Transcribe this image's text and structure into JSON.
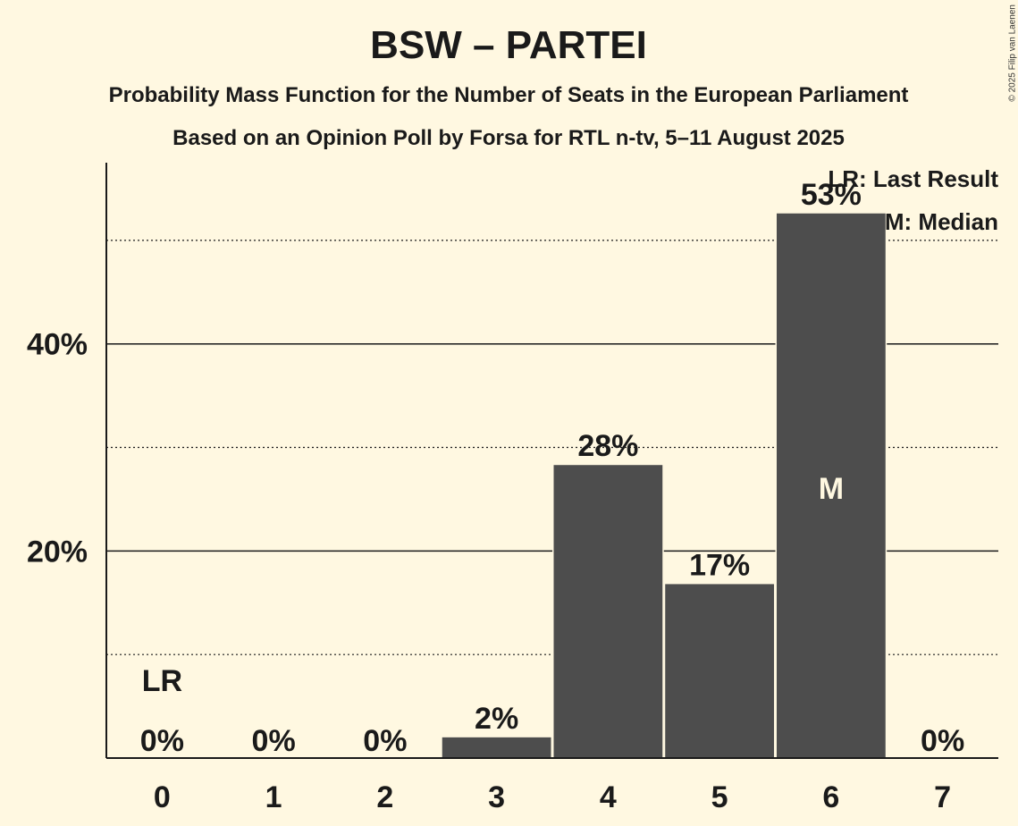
{
  "chart_data": {
    "type": "bar",
    "title": "BSW – PARTEI",
    "subtitle1": "Probability Mass Function for the Number of Seats in the European Parliament",
    "subtitle2": "Based on an Opinion Poll by Forsa for RTL n-tv, 5–11 August 2025",
    "copyright": "© 2025 Filip van Laenen",
    "categories": [
      "0",
      "1",
      "2",
      "3",
      "4",
      "5",
      "6",
      "7"
    ],
    "values": [
      0,
      0,
      0,
      2,
      28.3,
      16.8,
      52.6,
      0
    ],
    "value_labels": [
      "0%",
      "0%",
      "0%",
      "2%",
      "28%",
      "17%",
      "53%",
      "0%"
    ],
    "ylim": [
      0,
      57.5
    ],
    "y_ticks": [
      {
        "value": 20,
        "label": "20%"
      },
      {
        "value": 40,
        "label": "40%"
      }
    ],
    "minor_gridlines": [
      10,
      30,
      50
    ],
    "last_result_seat": "0",
    "last_result_marker": "LR",
    "median_seat": "6",
    "median_marker": "M",
    "legend": {
      "position": "top-right",
      "items": [
        "LR: Last Result",
        "M: Median"
      ]
    },
    "colors": {
      "background": "#FFF8E1",
      "bar": "#4D4D4D",
      "text": "#1A1A1A",
      "median_text": "#FFF8E1"
    }
  }
}
